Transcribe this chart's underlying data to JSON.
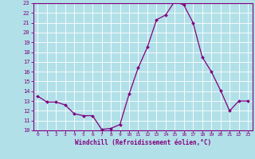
{
  "x": [
    0,
    1,
    2,
    3,
    4,
    5,
    6,
    7,
    8,
    9,
    10,
    11,
    12,
    13,
    14,
    15,
    16,
    17,
    18,
    19,
    20,
    21,
    22,
    23
  ],
  "y": [
    13.5,
    12.9,
    12.9,
    12.6,
    11.7,
    11.5,
    11.5,
    10.1,
    10.2,
    10.6,
    13.7,
    16.4,
    18.5,
    21.3,
    21.8,
    23.2,
    22.8,
    21.0,
    17.5,
    16.0,
    14.1,
    12.0,
    13.0,
    13.0
  ],
  "line_color": "#800080",
  "marker": "D",
  "marker_size": 2.0,
  "bg_color": "#b2e0e8",
  "grid_color": "#ffffff",
  "xlabel": "Windchill (Refroidissement éolien,°C)",
  "xlabel_color": "#800080",
  "tick_color": "#800080",
  "xlim": [
    -0.5,
    23.5
  ],
  "ylim": [
    10,
    23
  ],
  "yticks": [
    10,
    11,
    12,
    13,
    14,
    15,
    16,
    17,
    18,
    19,
    20,
    21,
    22,
    23
  ],
  "xticks": [
    0,
    1,
    2,
    3,
    4,
    5,
    6,
    7,
    8,
    9,
    10,
    11,
    12,
    13,
    14,
    15,
    16,
    17,
    18,
    19,
    20,
    21,
    22,
    23
  ],
  "figsize": [
    3.2,
    2.0
  ],
  "dpi": 100
}
